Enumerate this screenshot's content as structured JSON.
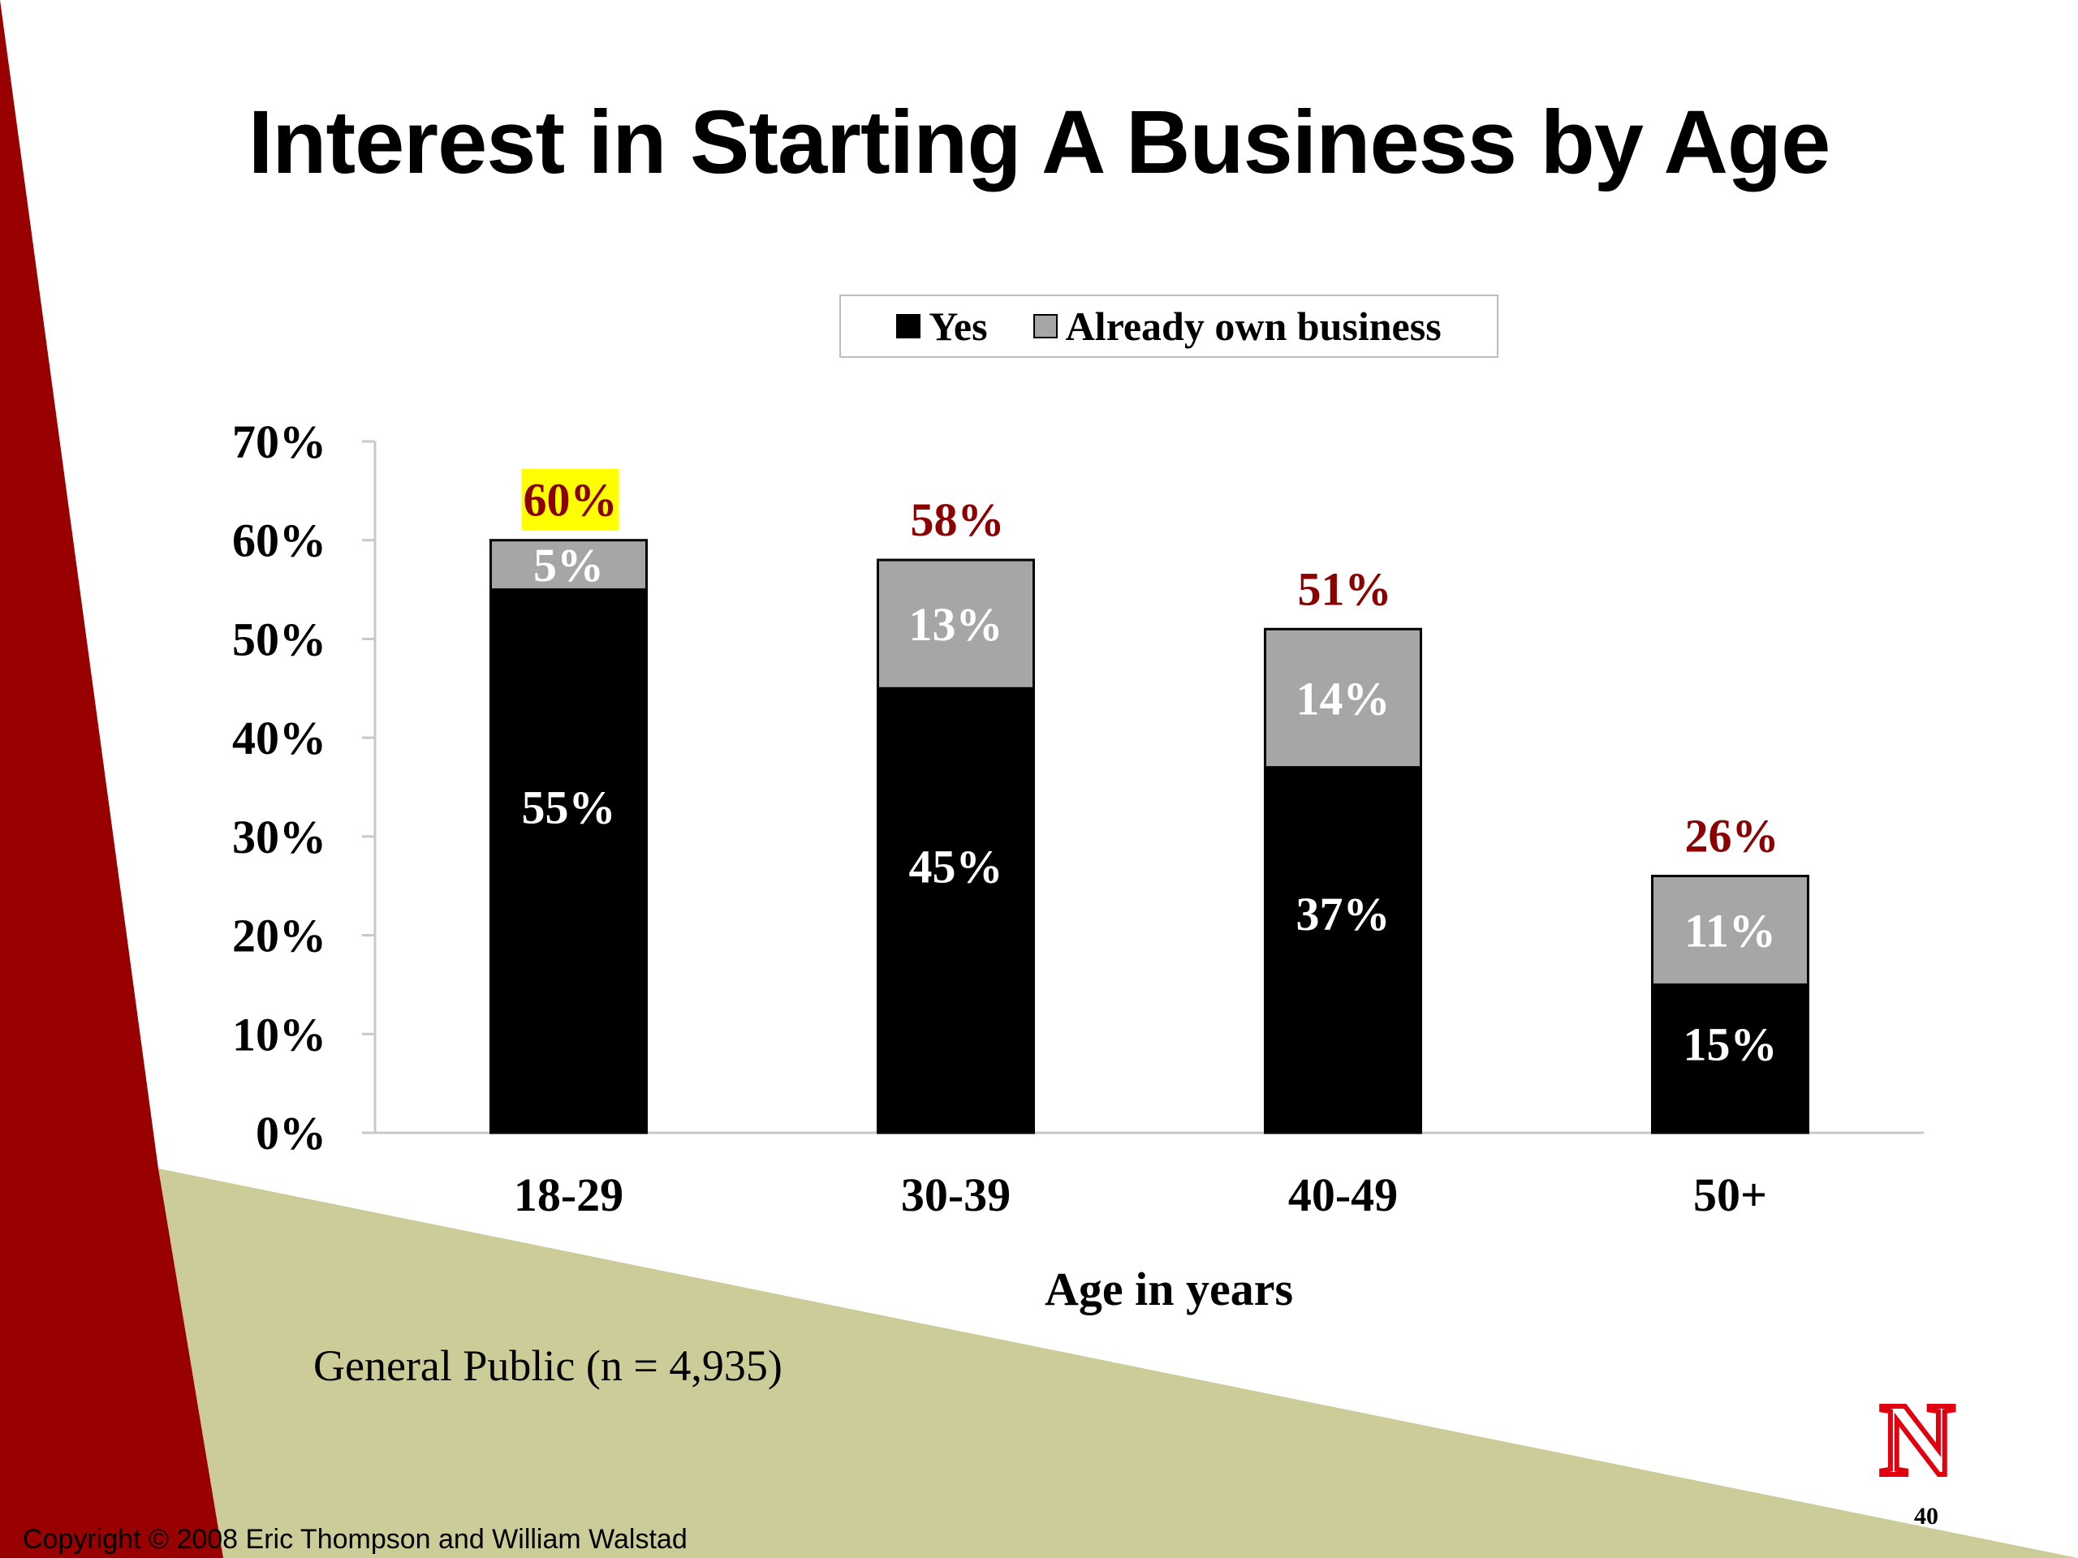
{
  "slide": {
    "title": "Interest in Starting A Business by Age",
    "footnote": "General Public (n = 4,935)",
    "copyright": "Copyright © 2008 Eric Thompson and William Walstad",
    "page_number": "40",
    "logo_letter": "N"
  },
  "colors": {
    "red_band": "#990000",
    "tan_band": "#cccc99",
    "yes": "#000000",
    "already_own": "#a6a6a6",
    "total_label": "#8b0000",
    "highlight": "#ffff00"
  },
  "chart_data": {
    "type": "bar",
    "stacked": true,
    "categories": [
      "18-29",
      "30-39",
      "40-49",
      "50+"
    ],
    "series": [
      {
        "name": "Yes",
        "values": [
          55,
          45,
          37,
          15
        ],
        "labels": [
          "55%",
          "45%",
          "37%",
          "15%"
        ]
      },
      {
        "name": "Already own business",
        "values": [
          5,
          13,
          14,
          11
        ],
        "labels": [
          "5%",
          "13%",
          "14%",
          "11%"
        ]
      }
    ],
    "totals": [
      60,
      58,
      51,
      26
    ],
    "total_labels": [
      "60%",
      "58%",
      "51%",
      "26%"
    ],
    "highlighted_total": "18-29",
    "xlabel": "Age in years",
    "ylabel": "",
    "ylim": [
      0,
      70
    ],
    "y_ticks": [
      "0%",
      "10%",
      "20%",
      "30%",
      "40%",
      "50%",
      "60%",
      "70%"
    ],
    "legend": {
      "position": "top",
      "entries": [
        "Yes",
        "Already own business"
      ]
    },
    "grid": false
  }
}
